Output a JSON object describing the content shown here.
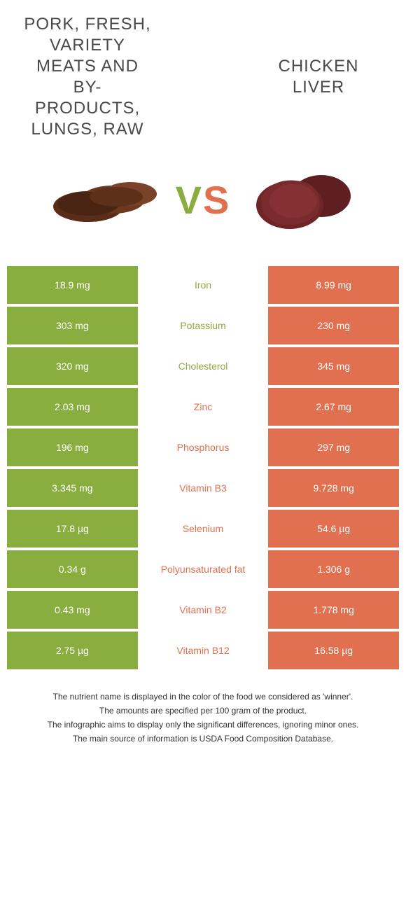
{
  "colors": {
    "left": "#8aad3f",
    "right": "#e0704f",
    "text": "#4a4a4a"
  },
  "foods": {
    "left": {
      "title": "Pork, fresh, variety meats and by-products, lungs, raw"
    },
    "right": {
      "title": "Chicken liver"
    }
  },
  "vs": {
    "v": "V",
    "s": "S"
  },
  "rows": [
    {
      "nutrient": "Iron",
      "left": "18.9 mg",
      "right": "8.99 mg",
      "winner": "left"
    },
    {
      "nutrient": "Potassium",
      "left": "303 mg",
      "right": "230 mg",
      "winner": "left"
    },
    {
      "nutrient": "Cholesterol",
      "left": "320 mg",
      "right": "345 mg",
      "winner": "left"
    },
    {
      "nutrient": "Zinc",
      "left": "2.03 mg",
      "right": "2.67 mg",
      "winner": "right"
    },
    {
      "nutrient": "Phosphorus",
      "left": "196 mg",
      "right": "297 mg",
      "winner": "right"
    },
    {
      "nutrient": "Vitamin B3",
      "left": "3.345 mg",
      "right": "9.728 mg",
      "winner": "right"
    },
    {
      "nutrient": "Selenium",
      "left": "17.8 µg",
      "right": "54.6 µg",
      "winner": "right"
    },
    {
      "nutrient": "Polyunsaturated fat",
      "left": "0.34 g",
      "right": "1.306 g",
      "winner": "right"
    },
    {
      "nutrient": "Vitamin B2",
      "left": "0.43 mg",
      "right": "1.778 mg",
      "winner": "right"
    },
    {
      "nutrient": "Vitamin B12",
      "left": "2.75 µg",
      "right": "16.58 µg",
      "winner": "right"
    }
  ],
  "footer": [
    "The nutrient name is displayed in the color of the food we considered as 'winner'.",
    "The amounts are specified per 100 gram of the product.",
    "The infographic aims to display only the significant differences, ignoring minor ones.",
    "The main source of information is USDA Food Composition Database."
  ]
}
